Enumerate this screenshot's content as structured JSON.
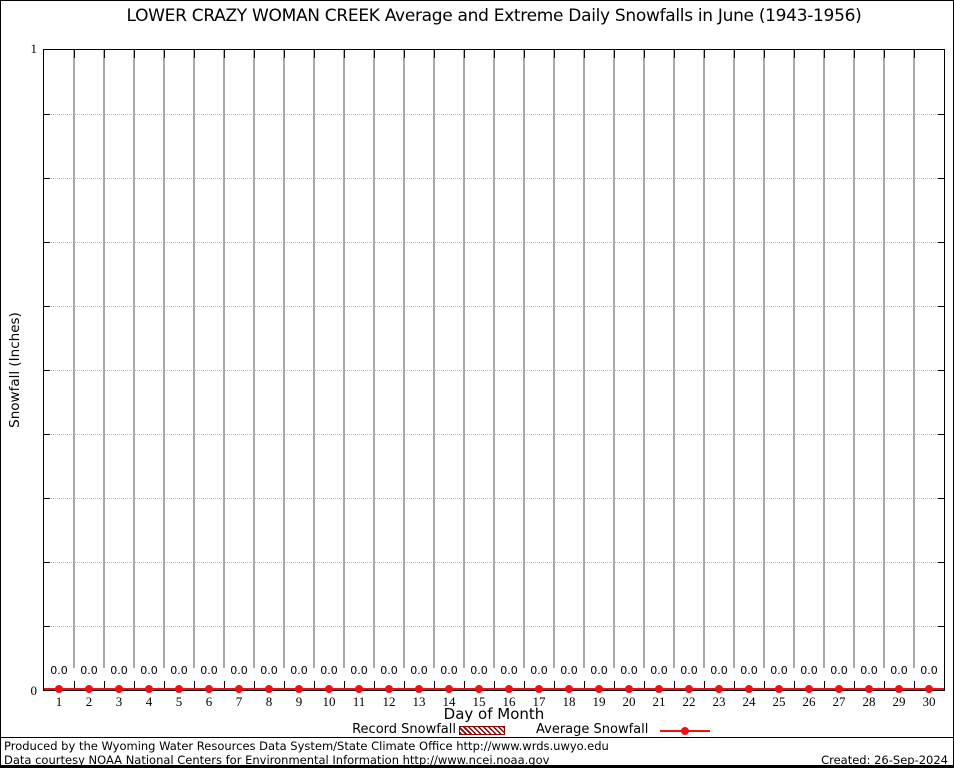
{
  "title": "LOWER CRAZY WOMAN CREEK Average and Extreme Daily Snowfalls in June (1943-1956)",
  "y_axis": {
    "label": "Snowfall (Inches)",
    "top_tick_label": "1",
    "bottom_tick_label": "0"
  },
  "x_axis": {
    "label": "Day of Month"
  },
  "legend": {
    "record_label": "Record Snowfall",
    "average_label": "Average Snowfall"
  },
  "footer": {
    "line1": "Produced by the Wyoming Water Resources Data System/State Climate Office http://www.wrds.uwyo.edu",
    "line2": "Data courtesy NOAA National Centers for Environmental Information http://www.ncei.noaa.gov",
    "created": "Created: 26-Sep-2024"
  },
  "colors": {
    "accent_red": "#ee1111",
    "record_dark_red": "#8b0000",
    "grid_gray": "#a8a8a8",
    "dotted_grid_gray": "#b4b4b4"
  },
  "chart_data": {
    "type": "line",
    "title": "LOWER CRAZY WOMAN CREEK Average and Extreme Daily Snowfalls in June (1943-1956)",
    "xlabel": "Day of Month",
    "ylabel": "Snowfall (Inches)",
    "ylim": [
      0,
      1
    ],
    "yticks_labeled": [
      0,
      1
    ],
    "minor_ytick_interval": 0.1,
    "grid": true,
    "legend_position": "bottom",
    "categories": [
      1,
      2,
      3,
      4,
      5,
      6,
      7,
      8,
      9,
      10,
      11,
      12,
      13,
      14,
      15,
      16,
      17,
      18,
      19,
      20,
      21,
      22,
      23,
      24,
      25,
      26,
      27,
      28,
      29,
      30
    ],
    "series": [
      {
        "name": "Record Snowfall",
        "values": [
          0,
          0,
          0,
          0,
          0,
          0,
          0,
          0,
          0,
          0,
          0,
          0,
          0,
          0,
          0,
          0,
          0,
          0,
          0,
          0,
          0,
          0,
          0,
          0,
          0,
          0,
          0,
          0,
          0,
          0
        ]
      },
      {
        "name": "Average Snowfall",
        "values": [
          0,
          0,
          0,
          0,
          0,
          0,
          0,
          0,
          0,
          0,
          0,
          0,
          0,
          0,
          0,
          0,
          0,
          0,
          0,
          0,
          0,
          0,
          0,
          0,
          0,
          0,
          0,
          0,
          0,
          0
        ]
      }
    ],
    "point_labels": [
      "0.0",
      "0.0",
      "0.0",
      "0.0",
      "0.0",
      "0.0",
      "0.0",
      "0.0",
      "0.0",
      "0.0",
      "0.0",
      "0.0",
      "0.0",
      "0.0",
      "0.0",
      "0.0",
      "0.0",
      "0.0",
      "0.0",
      "0.0",
      "0.0",
      "0.0",
      "0.0",
      "0.0",
      "0.0",
      "0.0",
      "0.0",
      "0.0",
      "0.0",
      "0.0"
    ]
  }
}
